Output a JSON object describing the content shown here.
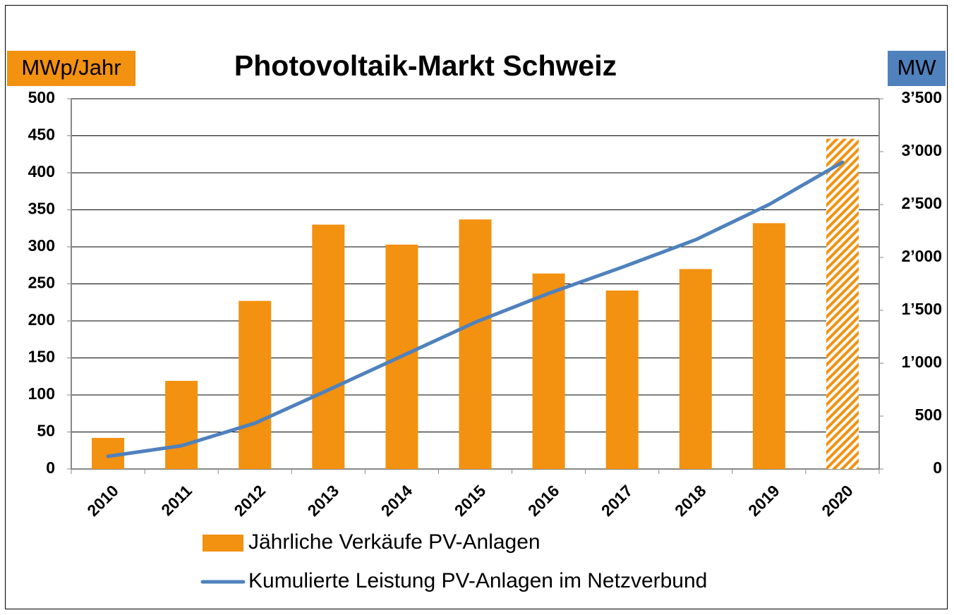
{
  "chart_data": {
    "type": "bar_line",
    "title": "Photovoltaik-Markt Schweiz",
    "ylabel": "MWp/Jahr",
    "y2label": "MW",
    "categories": [
      "2010",
      "2011",
      "2012",
      "2013",
      "2014",
      "2015",
      "2016",
      "2017",
      "2018",
      "2019",
      "2020"
    ],
    "series": [
      {
        "name": "Jährliche Verkäufe PV-Anlagen",
        "type": "bar",
        "color": "#f39110",
        "values": [
          42,
          119,
          227,
          330,
          303,
          337,
          264,
          241,
          270,
          332,
          446
        ],
        "hatched": [
          false,
          false,
          false,
          false,
          false,
          false,
          false,
          false,
          false,
          false,
          true
        ]
      },
      {
        "name": "Kumulierte Leistung PV-Anlagen im Netzverbund",
        "type": "line",
        "color": "#4f81bd",
        "axis": "y2",
        "values": [
          120,
          220,
          433,
          747,
          1067,
          1387,
          1660,
          1907,
          2167,
          2500,
          2900
        ]
      }
    ],
    "ylim": [
      0,
      500
    ],
    "yticks": [
      0,
      50,
      100,
      150,
      200,
      250,
      300,
      350,
      400,
      450,
      500
    ],
    "y2lim": [
      0,
      3500
    ],
    "y2ticks": [
      0,
      500,
      {
        "value": 1000,
        "label": "1’000"
      },
      {
        "value": 1500,
        "label": "1’500"
      },
      {
        "value": 2000,
        "label": "2’000"
      },
      {
        "value": 2500,
        "label": "2’500"
      },
      {
        "value": 3000,
        "label": "3’000"
      },
      {
        "value": 3500,
        "label": "3’500"
      }
    ],
    "grid": true
  }
}
